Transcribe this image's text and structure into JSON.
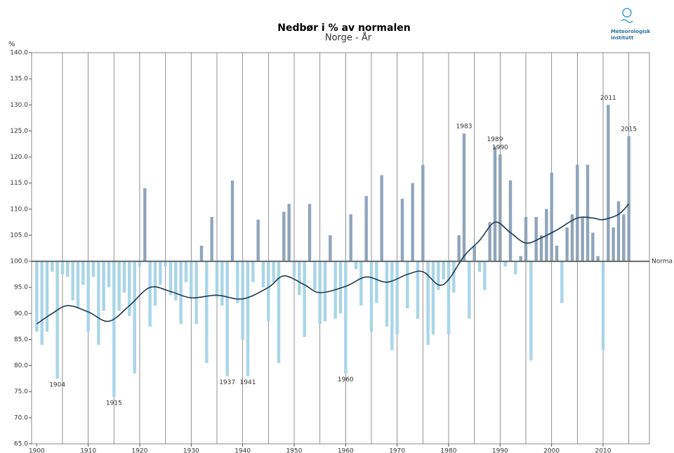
{
  "chart_data": {
    "type": "bar",
    "title": "Nedbør i % av normalen",
    "subtitle": "Norge - År",
    "y_label": "%",
    "logo_text": [
      "Meteorologisk",
      "institutt"
    ],
    "baseline": 100,
    "baseline_label": "Norma",
    "color_above": "#8fa4ba",
    "color_below": "#a9d5e7",
    "x": [
      1900,
      1901,
      1902,
      1903,
      1904,
      1905,
      1906,
      1907,
      1908,
      1909,
      1910,
      1911,
      1912,
      1913,
      1914,
      1915,
      1916,
      1917,
      1918,
      1919,
      1920,
      1921,
      1922,
      1923,
      1924,
      1925,
      1926,
      1927,
      1928,
      1929,
      1930,
      1931,
      1932,
      1933,
      1934,
      1935,
      1936,
      1937,
      1938,
      1939,
      1940,
      1941,
      1942,
      1943,
      1944,
      1945,
      1946,
      1947,
      1948,
      1949,
      1950,
      1951,
      1952,
      1953,
      1954,
      1955,
      1956,
      1957,
      1958,
      1959,
      1960,
      1961,
      1962,
      1963,
      1964,
      1965,
      1966,
      1967,
      1968,
      1969,
      1970,
      1971,
      1972,
      1973,
      1974,
      1975,
      1976,
      1977,
      1978,
      1979,
      1980,
      1981,
      1982,
      1983,
      1984,
      1985,
      1986,
      1987,
      1988,
      1989,
      1990,
      1991,
      1992,
      1993,
      1994,
      1995,
      1996,
      1997,
      1998,
      1999,
      2000,
      2001,
      2002,
      2003,
      2004,
      2005,
      2006,
      2007,
      2008,
      2009,
      2010,
      2011,
      2012,
      2013,
      2014,
      2015
    ],
    "values": [
      86.5,
      84,
      86.5,
      98,
      77.5,
      97.5,
      97,
      92.5,
      91,
      95.5,
      86.5,
      97,
      84,
      90.5,
      95,
      74,
      90.5,
      94,
      89.5,
      78.5,
      99,
      114,
      87.5,
      91.5,
      95.5,
      99,
      93.5,
      92.5,
      88,
      96,
      93,
      88,
      103,
      80.5,
      108.5,
      93,
      91.5,
      78,
      115.5,
      92,
      85,
      78,
      96,
      108,
      95,
      88.5,
      96,
      80.5,
      109.5,
      111,
      97,
      93.5,
      85.5,
      111,
      94.5,
      88,
      88.5,
      105,
      89,
      90,
      78.5,
      109,
      98.5,
      91.5,
      112.5,
      86.5,
      92,
      116.5,
      87.5,
      83,
      86,
      112,
      91,
      115,
      89,
      118.5,
      84,
      86,
      94.5,
      96.5,
      86,
      94,
      105,
      124.5,
      89,
      103,
      98,
      94.5,
      107.5,
      122,
      120.5,
      99,
      115.5,
      97.5,
      101,
      108.5,
      81,
      108.5,
      105,
      110,
      117,
      103,
      92,
      106.5,
      109,
      118.5,
      108.5,
      118.5,
      105.5,
      101,
      83,
      130,
      106.5,
      111.5,
      109,
      124
    ],
    "smooth": {
      "color": "#1d3a52",
      "x": [
        1900,
        1903,
        1906,
        1910,
        1914,
        1918,
        1922,
        1926,
        1930,
        1935,
        1940,
        1945,
        1948,
        1952,
        1955,
        1960,
        1964,
        1968,
        1972,
        1975,
        1978,
        1980,
        1983,
        1986,
        1989,
        1992,
        1995,
        1998,
        2001,
        2005,
        2008,
        2010,
        2013,
        2015
      ],
      "values": [
        88,
        90,
        91.5,
        90.3,
        88.5,
        91.5,
        95,
        94.2,
        93,
        93.5,
        92.8,
        95,
        97.2,
        95.5,
        94,
        95.2,
        97,
        96,
        97.5,
        98,
        95.5,
        96.5,
        101,
        104,
        107.5,
        105.5,
        103.5,
        104.5,
        106,
        108.3,
        108.3,
        108,
        109,
        111
      ]
    },
    "annotations": [
      {
        "x": 1904,
        "y": 77.5,
        "text": "1904"
      },
      {
        "x": 1915,
        "y": 74,
        "text": "1915"
      },
      {
        "x": 1937,
        "y": 78,
        "text": "1937"
      },
      {
        "x": 1941,
        "y": 78,
        "text": "1941"
      },
      {
        "x": 1960,
        "y": 78.5,
        "text": "1960"
      },
      {
        "x": 1983,
        "y": 124.5,
        "text": "1983"
      },
      {
        "x": 1989,
        "y": 122,
        "text": "1989"
      },
      {
        "x": 1990,
        "y": 120.5,
        "text": "1990"
      },
      {
        "x": 2011,
        "y": 130,
        "text": "2011"
      },
      {
        "x": 2015,
        "y": 124,
        "text": "2015"
      }
    ],
    "xlim": [
      1899,
      2019
    ],
    "xticks": [
      1900,
      1910,
      1920,
      1930,
      1940,
      1950,
      1960,
      1970,
      1980,
      1990,
      2000,
      2010
    ],
    "xgrid": [
      1905,
      1910,
      1915,
      1920,
      1925,
      1930,
      1935,
      1940,
      1945,
      1950,
      1955,
      1960,
      1965,
      1970,
      1975,
      1980,
      1985,
      1990,
      1995,
      2000,
      2005,
      2010,
      2015
    ],
    "ylim": [
      65,
      140
    ],
    "yticks": [
      {
        "value": 65,
        "label": "65.0"
      },
      {
        "value": 70,
        "label": "70.0"
      },
      {
        "value": 75,
        "label": "75.0"
      },
      {
        "value": 80,
        "label": "80.0"
      },
      {
        "value": 85,
        "label": "85.0"
      },
      {
        "value": 90,
        "label": "90.0"
      },
      {
        "value": 95,
        "label": "95.0"
      },
      {
        "value": 100,
        "label": "100.0"
      },
      {
        "value": 105,
        "label": "105.0"
      },
      {
        "value": 110,
        "label": "110.0"
      },
      {
        "value": 115,
        "label": "115.0"
      },
      {
        "value": 120,
        "label": "120.0"
      },
      {
        "value": 125,
        "label": "125.0"
      },
      {
        "value": 130,
        "label": "130.0"
      },
      {
        "value": 135,
        "label": "135.0"
      },
      {
        "value": 140,
        "label": "140.0"
      }
    ]
  }
}
